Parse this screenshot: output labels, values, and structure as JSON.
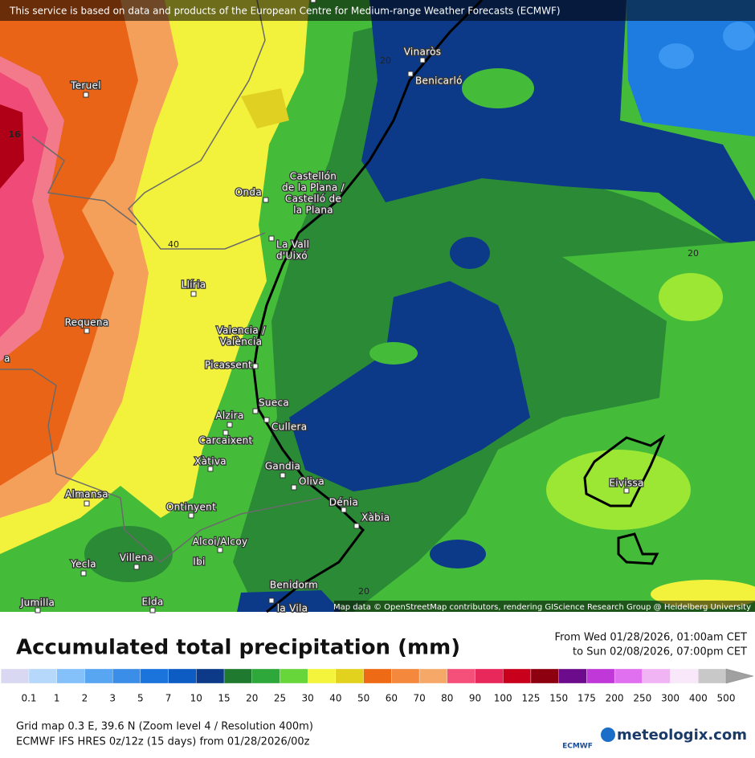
{
  "header": {
    "attribution": "This service is based on data and products of the European Centre for Medium-range Weather Forecasts (ECMWF)"
  },
  "map": {
    "cities": [
      {
        "lines": [
          "Teruel"
        ]
      },
      {
        "lines": [
          "Vinaròs"
        ]
      },
      {
        "lines": [
          "Benicarló"
        ]
      },
      {
        "lines": [
          "Castellón",
          "de la Plana /",
          "Castelló de",
          "la Plana"
        ]
      },
      {
        "lines": [
          "Onda"
        ]
      },
      {
        "lines": [
          "La Vall",
          "d'Uixó"
        ]
      },
      {
        "lines": [
          "Llíria"
        ]
      },
      {
        "lines": [
          "Requena"
        ]
      },
      {
        "lines": [
          "Valencia /",
          "València"
        ]
      },
      {
        "lines": [
          "Picassent"
        ]
      },
      {
        "lines": [
          "Sueca"
        ]
      },
      {
        "lines": [
          "Alzira"
        ]
      },
      {
        "lines": [
          "Cullera"
        ]
      },
      {
        "lines": [
          "Carcaixent"
        ]
      },
      {
        "lines": [
          "Xàtiva"
        ]
      },
      {
        "lines": [
          "Gandia"
        ]
      },
      {
        "lines": [
          "Oliva"
        ]
      },
      {
        "lines": [
          "Dénia"
        ]
      },
      {
        "lines": [
          "Xàbia"
        ]
      },
      {
        "lines": [
          "Almansa"
        ]
      },
      {
        "lines": [
          "Ontinyent"
        ]
      },
      {
        "lines": [
          "Alcoi/Alcoy"
        ]
      },
      {
        "lines": [
          "Ibi"
        ]
      },
      {
        "lines": [
          "Villena"
        ]
      },
      {
        "lines": [
          "Yecla"
        ]
      },
      {
        "lines": [
          "Elda"
        ]
      },
      {
        "lines": [
          "Benidorm"
        ]
      },
      {
        "lines": [
          "Jumilla"
        ]
      },
      {
        "lines": [
          "la Vila"
        ]
      },
      {
        "lines": [
          "Eivissa"
        ]
      },
      {
        "lines": [
          "a"
        ]
      }
    ],
    "contour_labels": [
      "20",
      "40",
      "20",
      "20",
      "16"
    ],
    "credit": "Map data © OpenStreetMap contributors, rendering GIScience Research Group @ Heidelberg University"
  },
  "legend": {
    "title": "Accumulated total precipitation (mm)",
    "period_from": "From Wed 01/28/2026, 01:00am CET",
    "period_to": "to Sun 02/08/2026, 07:00pm CET",
    "levels": [
      0.1,
      1,
      2,
      3,
      5,
      7,
      10,
      15,
      20,
      25,
      30,
      40,
      50,
      60,
      70,
      80,
      90,
      100,
      125,
      150,
      175,
      200,
      250,
      300,
      400,
      500
    ],
    "colors": [
      "#f4f4fc",
      "#d8d8f2",
      "#b6d8fa",
      "#84c0fa",
      "#58a6f2",
      "#3a8ee8",
      "#1a74dc",
      "#0c5cc4",
      "#0c3a88",
      "#1f7a30",
      "#2ea83a",
      "#66d63a",
      "#f4f43c",
      "#e2d21e",
      "#ee6a14",
      "#f4883c",
      "#f6a868",
      "#f4507a",
      "#e8285a",
      "#c8001c",
      "#8c0010",
      "#6c0c8c",
      "#c038d8",
      "#e070f0",
      "#f0b4f4",
      "#f8e8fa",
      "#c8c8c8",
      "#a0a0a0"
    ]
  },
  "footer": {
    "grid": "Grid map 0.3 E, 39.6 N (Zoom level 4 / Resolution 400m)",
    "model": "ECMWF IFS HRES 0z/12z (15 days) from 01/28/2026/00z",
    "ecmwf_logo": "ECMWF",
    "brand": "meteologix.com"
  }
}
